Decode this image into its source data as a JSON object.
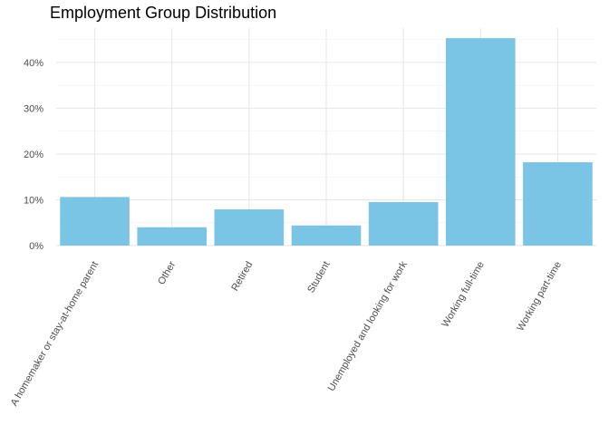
{
  "chart_data": {
    "type": "bar",
    "title": "Employment Group Distribution",
    "xlabel": "",
    "ylabel": "",
    "categories": [
      "A homemaker or stay-at-home parent",
      "Other",
      "Retired",
      "Student",
      "Unemployed and looking for work",
      "Working full-time",
      "Working part-time"
    ],
    "values": [
      10.6,
      4.0,
      7.9,
      4.4,
      9.5,
      45.3,
      18.2
    ],
    "ylim": [
      0,
      47.5
    ],
    "yticks": [
      0,
      10,
      20,
      30,
      40
    ],
    "ytick_labels": [
      "0%",
      "10%",
      "20%",
      "30%",
      "40%"
    ],
    "bar_color": "#7AC4E5",
    "grid": true
  }
}
